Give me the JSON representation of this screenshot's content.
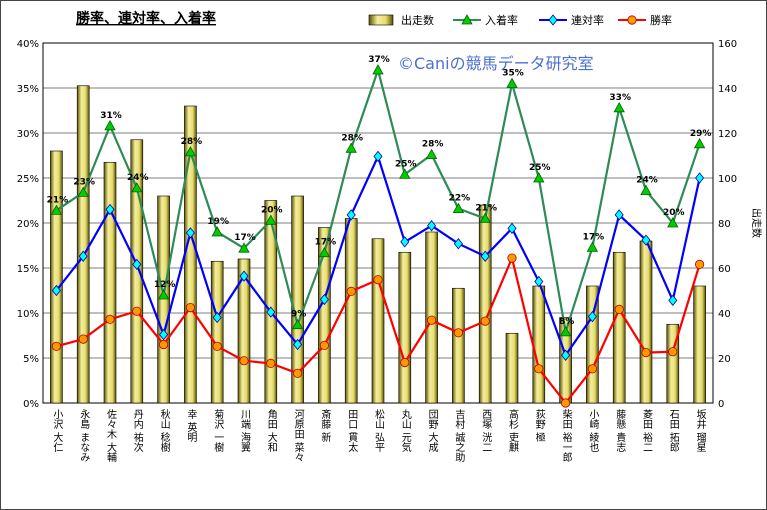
{
  "chart_data": {
    "type": "bar",
    "title": "勝率、連対率、入着率",
    "watermark": "©Caniの競馬データ研究室",
    "categories": [
      "小沢 大仁",
      "永島 まなみ",
      "佐々木 大輔",
      "丹内 祐次",
      "秋山 稔樹",
      "幸 英明",
      "菊沢 一樹",
      "川端 海翼",
      "角田 大和",
      "河原田 菜々",
      "斎藤 新",
      "田口 貫太",
      "松山 弘平",
      "丸山 元気",
      "団野 大成",
      "吉村 誠之助",
      "西塚 洸二",
      "高杉 吏麒",
      "荻野 極",
      "柴田 裕一郎",
      "小崎 綾也",
      "藤懸 貴志",
      "菱田 裕二",
      "石田 拓郎",
      "坂井 瑠星"
    ],
    "y_left": {
      "ylim": [
        0,
        40
      ],
      "ticks": [
        "0%",
        "5%",
        "10%",
        "15%",
        "20%",
        "25%",
        "30%",
        "35%",
        "40%"
      ]
    },
    "y_right": {
      "label": "出走数",
      "ylim": [
        0,
        160
      ],
      "ticks": [
        "0",
        "20",
        "40",
        "60",
        "80",
        "100",
        "120",
        "140",
        "160"
      ]
    },
    "grid": true,
    "legend_position": "top",
    "series": [
      {
        "name": "出走数",
        "kind": "bar",
        "axis": "right",
        "color": "#e8e080",
        "values": [
          112,
          141,
          107,
          117,
          92,
          132,
          63,
          64,
          90,
          92,
          78,
          82,
          73,
          67,
          76,
          51,
          88,
          31,
          52,
          38,
          52,
          67,
          72,
          35,
          52
        ]
      },
      {
        "name": "入着率",
        "kind": "line",
        "axis": "left",
        "color": "#2e8b57",
        "marker": "triangle",
        "marker_color": "#00cc00",
        "values": [
          21.4,
          23.4,
          30.8,
          23.9,
          12.0,
          27.9,
          19.0,
          17.2,
          20.3,
          8.7,
          16.7,
          28.3,
          37.0,
          25.4,
          27.6,
          21.6,
          20.5,
          35.5,
          25.0,
          7.9,
          17.3,
          32.8,
          23.6,
          20.0,
          28.8
        ],
        "labels": [
          "21%",
          "23%",
          "31%",
          "24%",
          "12%",
          "28%",
          "19%",
          "17%",
          "20%",
          "9%",
          "17%",
          "28%",
          "37%",
          "25%",
          "28%",
          "22%",
          "21%",
          "35%",
          "25%",
          "8%",
          "17%",
          "33%",
          "24%",
          "20%",
          "29%"
        ]
      },
      {
        "name": "連対率",
        "kind": "line",
        "axis": "left",
        "color": "#0000ff",
        "marker": "diamond",
        "marker_color": "#00ffff",
        "values": [
          12.5,
          16.3,
          21.5,
          15.4,
          7.6,
          18.9,
          9.5,
          14.1,
          10.1,
          6.5,
          11.5,
          20.9,
          27.4,
          17.9,
          19.7,
          17.7,
          16.3,
          19.4,
          13.5,
          5.3,
          9.6,
          20.9,
          18.1,
          11.4,
          25.0
        ]
      },
      {
        "name": "勝率",
        "kind": "line",
        "axis": "left",
        "color": "#ff0000",
        "marker": "circle",
        "marker_color": "#ff9900",
        "values": [
          6.3,
          7.1,
          9.3,
          10.2,
          6.5,
          10.6,
          6.3,
          4.7,
          4.4,
          3.3,
          6.4,
          12.4,
          13.7,
          4.5,
          9.2,
          7.8,
          9.1,
          16.1,
          3.8,
          0.0,
          3.8,
          10.4,
          5.6,
          5.7,
          15.4
        ]
      }
    ]
  }
}
